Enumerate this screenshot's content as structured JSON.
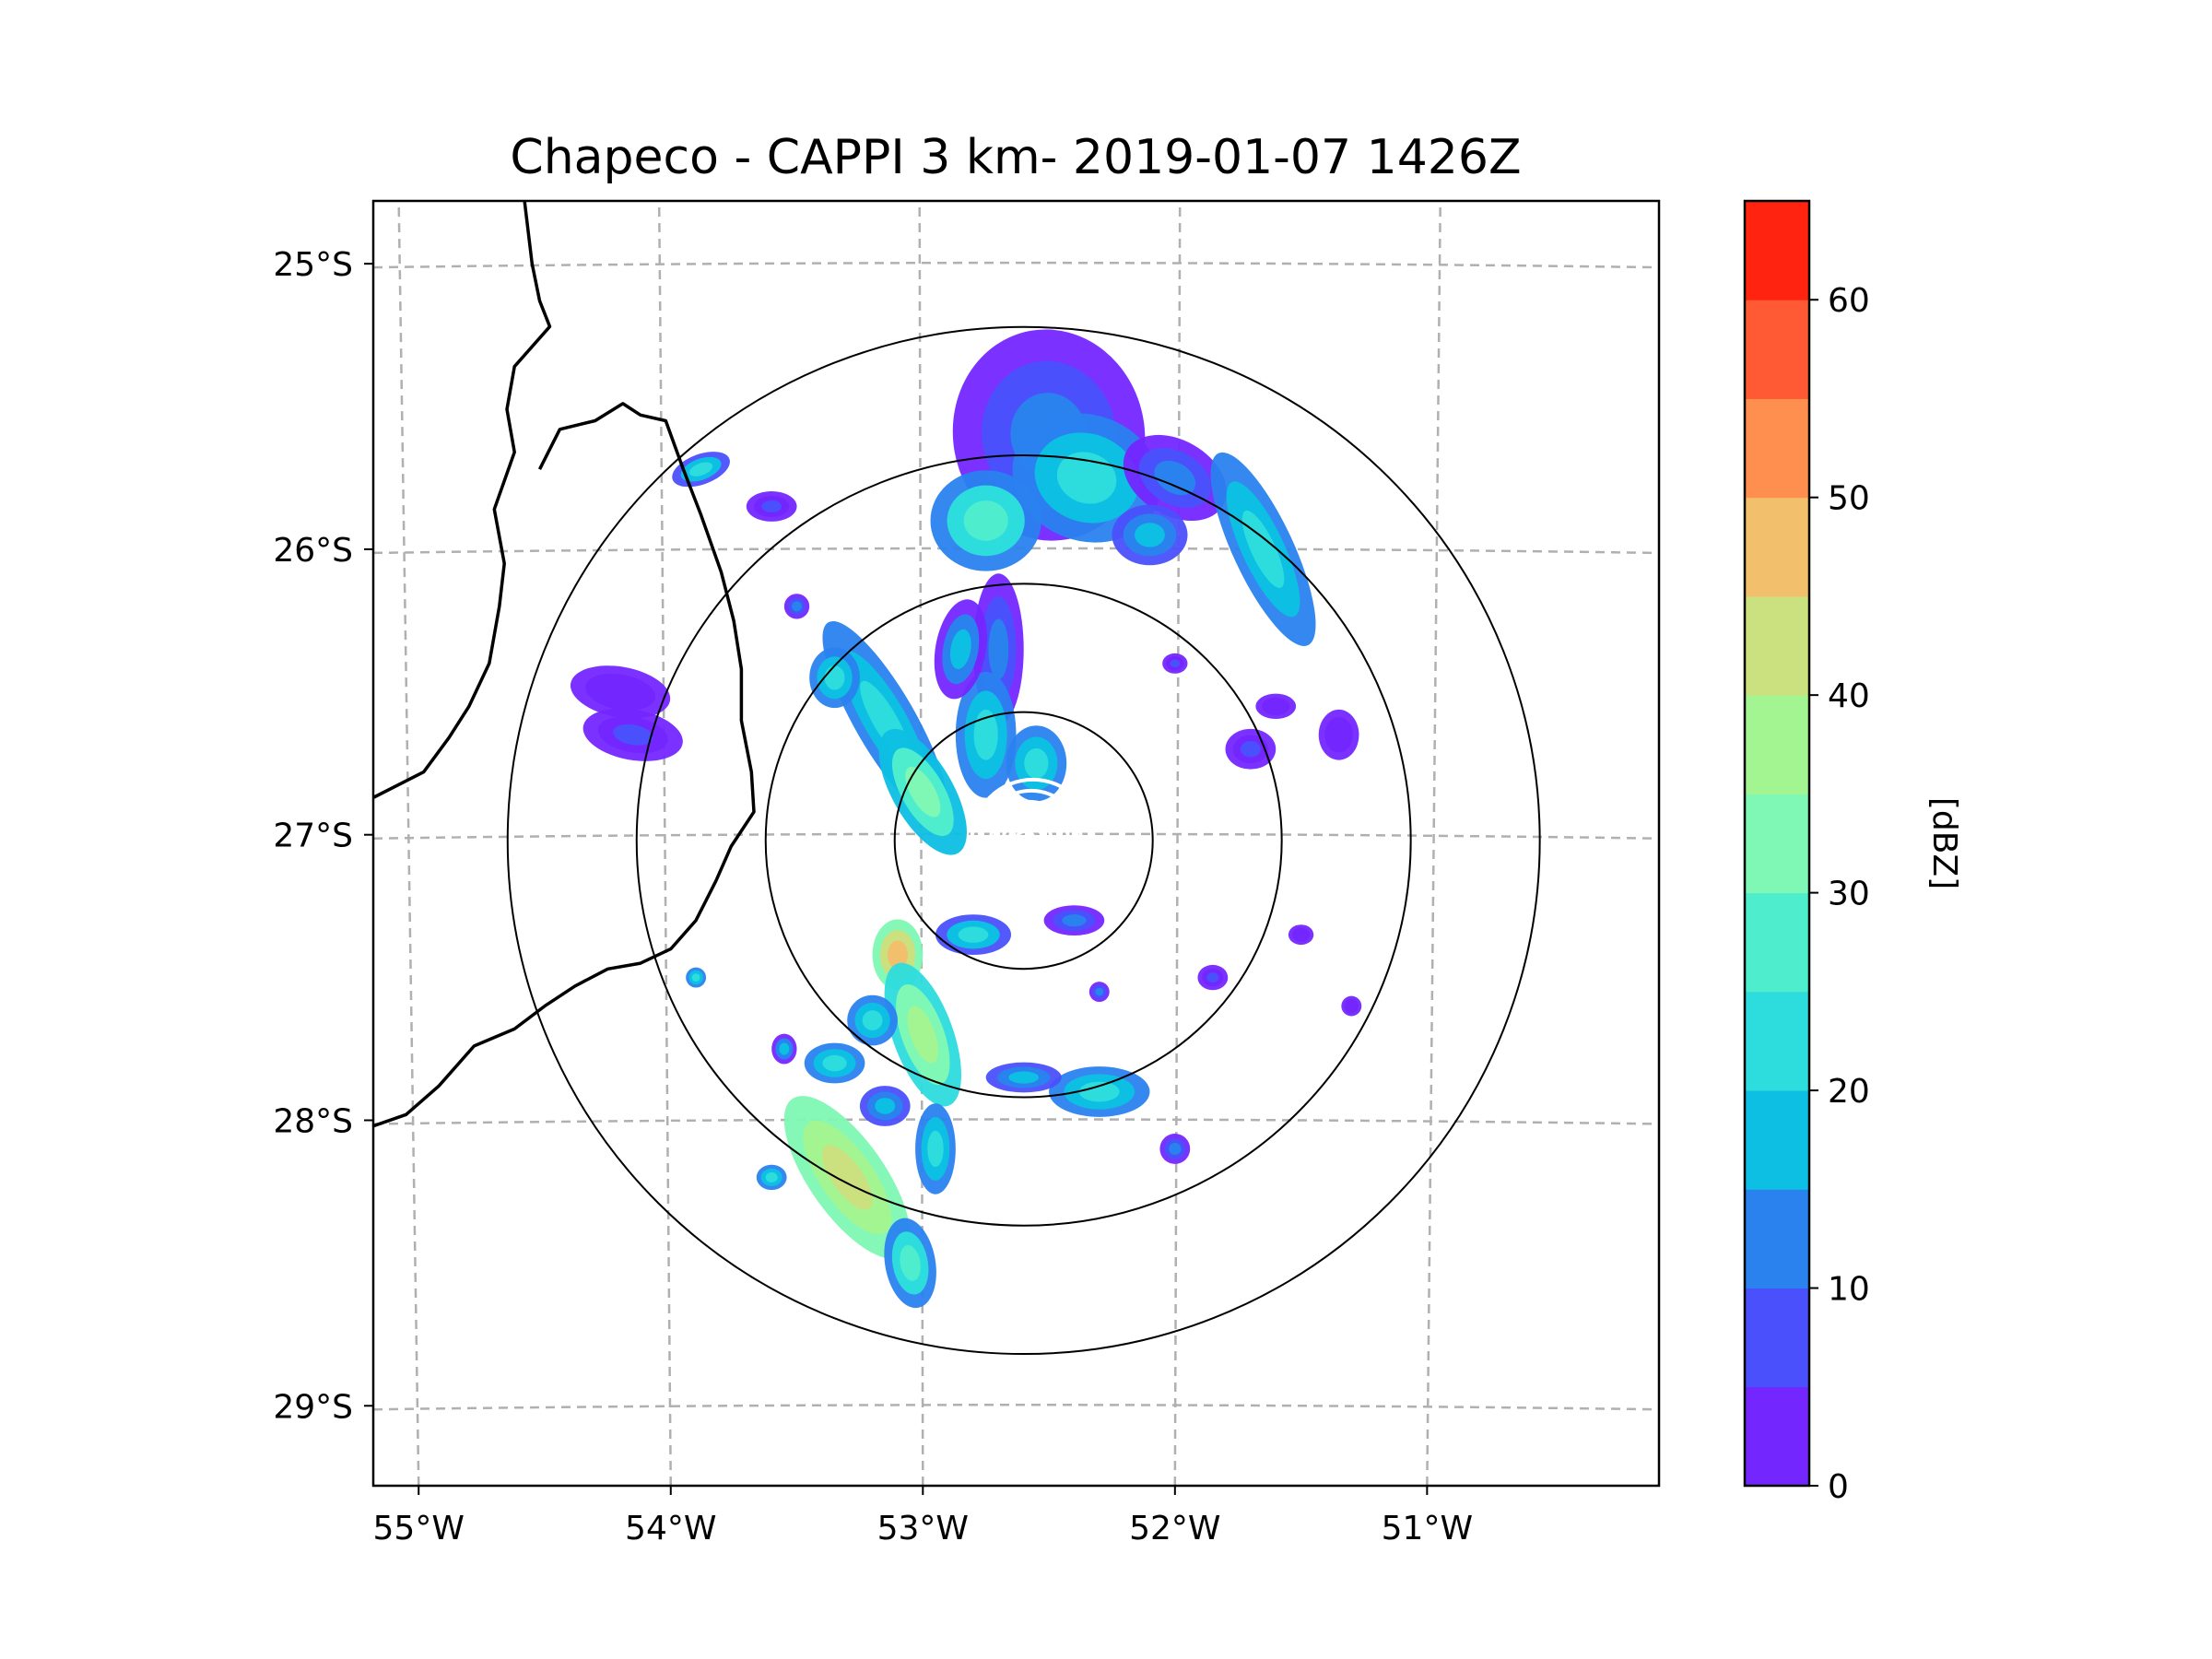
{
  "title": "Chapeco - CAPPI 3 km- 2019-01-07 1426Z",
  "map": {
    "type": "radar-ppi",
    "extent": {
      "lon": [
        -55.18,
        -50.08
      ],
      "lat": [
        -29.28,
        -24.78
      ]
    },
    "radar_center": {
      "lon": -52.6,
      "lat": -27.02
    },
    "range_rings_km": [
      50,
      100,
      150,
      200
    ],
    "lon_ticks": [
      {
        "value": -55,
        "label": "55°W"
      },
      {
        "value": -54,
        "label": "54°W"
      },
      {
        "value": -53,
        "label": "53°W"
      },
      {
        "value": -52,
        "label": "52°W"
      },
      {
        "value": -51,
        "label": "51°W"
      }
    ],
    "lat_ticks": [
      {
        "value": -25,
        "label": "25°S"
      },
      {
        "value": -26,
        "label": "26°S"
      },
      {
        "value": -27,
        "label": "27°S"
      },
      {
        "value": -28,
        "label": "28°S"
      },
      {
        "value": -29,
        "label": "29°S"
      }
    ],
    "gridlines": true,
    "border": [
      [
        -54.58,
        -24.78
      ],
      [
        -54.55,
        -25.0
      ],
      [
        -54.52,
        -25.13
      ],
      [
        -54.48,
        -25.22
      ],
      [
        -54.62,
        -25.36
      ],
      [
        -54.65,
        -25.51
      ],
      [
        -54.62,
        -25.66
      ],
      [
        -54.7,
        -25.86
      ],
      [
        -54.66,
        -26.05
      ],
      [
        -54.68,
        -26.2
      ],
      [
        -54.72,
        -26.4
      ],
      [
        -54.8,
        -26.55
      ],
      [
        -54.88,
        -26.66
      ],
      [
        -54.98,
        -26.78
      ],
      [
        -55.18,
        -26.87
      ]
    ],
    "border2": [
      [
        -54.52,
        -25.72
      ],
      [
        -54.44,
        -25.58
      ],
      [
        -54.3,
        -25.55
      ],
      [
        -54.19,
        -25.49
      ],
      [
        -54.12,
        -25.53
      ],
      [
        -54.02,
        -25.55
      ],
      [
        -53.95,
        -25.72
      ],
      [
        -53.88,
        -25.88
      ],
      [
        -53.8,
        -26.08
      ],
      [
        -53.75,
        -26.25
      ],
      [
        -53.72,
        -26.42
      ],
      [
        -53.72,
        -26.6
      ],
      [
        -53.68,
        -26.78
      ],
      [
        -53.67,
        -26.92
      ],
      [
        -53.76,
        -27.04
      ],
      [
        -53.82,
        -27.16
      ],
      [
        -53.9,
        -27.3
      ],
      [
        -54.0,
        -27.4
      ],
      [
        -54.12,
        -27.45
      ],
      [
        -54.25,
        -27.47
      ],
      [
        -54.38,
        -27.53
      ],
      [
        -54.5,
        -27.6
      ],
      [
        -54.62,
        -27.68
      ],
      [
        -54.78,
        -27.74
      ],
      [
        -54.92,
        -27.88
      ],
      [
        -55.05,
        -27.98
      ],
      [
        -55.18,
        -28.02
      ]
    ]
  },
  "echoes": [
    {
      "lon": -52.5,
      "lat": -25.6,
      "rx": 0.38,
      "ry": 0.42,
      "rot": -10,
      "dbz": 12
    },
    {
      "lon": -52.35,
      "lat": -25.75,
      "rx": 0.3,
      "ry": 0.25,
      "rot": 20,
      "dbz": 22
    },
    {
      "lon": -52.75,
      "lat": -25.9,
      "rx": 0.22,
      "ry": 0.2,
      "rot": 0,
      "dbz": 26
    },
    {
      "lon": -52.0,
      "lat": -25.75,
      "rx": 0.22,
      "ry": 0.15,
      "rot": 30,
      "dbz": 14
    },
    {
      "lon": -51.65,
      "lat": -26.0,
      "rx": 0.12,
      "ry": 0.42,
      "rot": -25,
      "dbz": 22
    },
    {
      "lon": -52.1,
      "lat": -25.95,
      "rx": 0.15,
      "ry": 0.12,
      "rot": 0,
      "dbz": 18
    },
    {
      "lon": -52.7,
      "lat": -26.35,
      "rx": 0.1,
      "ry": 0.3,
      "rot": 0,
      "dbz": 12
    },
    {
      "lon": -52.75,
      "lat": -26.65,
      "rx": 0.12,
      "ry": 0.25,
      "rot": 0,
      "dbz": 24
    },
    {
      "lon": -53.15,
      "lat": -26.6,
      "rx": 0.12,
      "ry": 0.45,
      "rot": -30,
      "dbz": 24
    },
    {
      "lon": -53.0,
      "lat": -26.85,
      "rx": 0.12,
      "ry": 0.28,
      "rot": -30,
      "dbz": 30
    },
    {
      "lon": -52.85,
      "lat": -26.35,
      "rx": 0.1,
      "ry": 0.2,
      "rot": 10,
      "dbz": 16
    },
    {
      "lon": -52.55,
      "lat": -26.75,
      "rx": 0.12,
      "ry": 0.15,
      "rot": 0,
      "dbz": 24
    },
    {
      "lon": -53.35,
      "lat": -26.45,
      "rx": 0.1,
      "ry": 0.12,
      "rot": 0,
      "dbz": 22
    },
    {
      "lon": -53.1,
      "lat": -27.42,
      "rx": 0.1,
      "ry": 0.14,
      "rot": 0,
      "dbz": 46
    },
    {
      "lon": -52.8,
      "lat": -27.35,
      "rx": 0.15,
      "ry": 0.08,
      "rot": 0,
      "dbz": 20
    },
    {
      "lon": -52.4,
      "lat": -27.3,
      "rx": 0.12,
      "ry": 0.06,
      "rot": 0,
      "dbz": 14
    },
    {
      "lon": -53.0,
      "lat": -27.7,
      "rx": 0.12,
      "ry": 0.3,
      "rot": -20,
      "dbz": 36
    },
    {
      "lon": -53.2,
      "lat": -27.65,
      "rx": 0.1,
      "ry": 0.1,
      "rot": 0,
      "dbz": 24
    },
    {
      "lon": -53.35,
      "lat": -27.8,
      "rx": 0.12,
      "ry": 0.08,
      "rot": 0,
      "dbz": 24
    },
    {
      "lon": -53.15,
      "lat": -27.95,
      "rx": 0.1,
      "ry": 0.08,
      "rot": 0,
      "dbz": 18
    },
    {
      "lon": -53.3,
      "lat": -28.2,
      "rx": 0.15,
      "ry": 0.38,
      "rot": -35,
      "dbz": 42
    },
    {
      "lon": -53.05,
      "lat": -28.5,
      "rx": 0.1,
      "ry": 0.18,
      "rot": -10,
      "dbz": 26
    },
    {
      "lon": -52.95,
      "lat": -28.1,
      "rx": 0.08,
      "ry": 0.18,
      "rot": 0,
      "dbz": 24
    },
    {
      "lon": -52.3,
      "lat": -27.9,
      "rx": 0.2,
      "ry": 0.1,
      "rot": 0,
      "dbz": 22
    },
    {
      "lon": -52.6,
      "lat": -27.85,
      "rx": 0.15,
      "ry": 0.06,
      "rot": 0,
      "dbz": 18
    },
    {
      "lon": -52.0,
      "lat": -28.1,
      "rx": 0.06,
      "ry": 0.06,
      "rot": 0,
      "dbz": 14
    },
    {
      "lon": -53.6,
      "lat": -28.2,
      "rx": 0.06,
      "ry": 0.05,
      "rot": 0,
      "dbz": 22
    },
    {
      "lon": -53.55,
      "lat": -27.75,
      "rx": 0.05,
      "ry": 0.06,
      "rot": 0,
      "dbz": 16
    },
    {
      "lon": -54.2,
      "lat": -26.5,
      "rx": 0.2,
      "ry": 0.1,
      "rot": 10,
      "dbz": 4
    },
    {
      "lon": -54.15,
      "lat": -26.65,
      "rx": 0.2,
      "ry": 0.1,
      "rot": 10,
      "dbz": 6
    },
    {
      "lon": -53.88,
      "lat": -25.72,
      "rx": 0.12,
      "ry": 0.06,
      "rot": -20,
      "dbz": 20
    },
    {
      "lon": -53.6,
      "lat": -25.85,
      "rx": 0.1,
      "ry": 0.06,
      "rot": 0,
      "dbz": 8
    },
    {
      "lon": -51.7,
      "lat": -26.7,
      "rx": 0.1,
      "ry": 0.08,
      "rot": 0,
      "dbz": 6
    },
    {
      "lon": -51.6,
      "lat": -26.55,
      "rx": 0.08,
      "ry": 0.05,
      "rot": 0,
      "dbz": 4
    },
    {
      "lon": -51.35,
      "lat": -26.65,
      "rx": 0.08,
      "ry": 0.1,
      "rot": 0,
      "dbz": 4
    },
    {
      "lon": -53.9,
      "lat": -27.5,
      "rx": 0.04,
      "ry": 0.04,
      "rot": 0,
      "dbz": 22
    },
    {
      "lon": -51.85,
      "lat": -27.5,
      "rx": 0.06,
      "ry": 0.05,
      "rot": 0,
      "dbz": 6
    },
    {
      "lon": -51.5,
      "lat": -27.35,
      "rx": 0.05,
      "ry": 0.04,
      "rot": 0,
      "dbz": 4
    },
    {
      "lon": -51.3,
      "lat": -27.6,
      "rx": 0.04,
      "ry": 0.04,
      "rot": 0,
      "dbz": 4
    },
    {
      "lon": -52.3,
      "lat": -27.55,
      "rx": 0.04,
      "ry": 0.04,
      "rot": 0,
      "dbz": 10
    },
    {
      "lon": -52.0,
      "lat": -26.4,
      "rx": 0.05,
      "ry": 0.04,
      "rot": 0,
      "dbz": 6
    },
    {
      "lon": -53.5,
      "lat": -26.2,
      "rx": 0.05,
      "ry": 0.05,
      "rot": 0,
      "dbz": 14
    }
  ],
  "colorbar": {
    "label": "[dBZ]",
    "min": 0,
    "max": 65,
    "step": 5,
    "colors": [
      "#7426ff",
      "#4a50fb",
      "#2a82ef",
      "#0dbfe3",
      "#2ddcdd",
      "#4eedcd",
      "#7ef8b4",
      "#a3f592",
      "#cbe07f",
      "#f2bf6c",
      "#ff8f4f",
      "#ff5a33",
      "#ff2310"
    ],
    "ticks": [
      {
        "value": 0,
        "label": "0"
      },
      {
        "value": 10,
        "label": "10"
      },
      {
        "value": 20,
        "label": "20"
      },
      {
        "value": 30,
        "label": "30"
      },
      {
        "value": 40,
        "label": "40"
      },
      {
        "value": 50,
        "label": "50"
      },
      {
        "value": 60,
        "label": "60"
      }
    ]
  }
}
